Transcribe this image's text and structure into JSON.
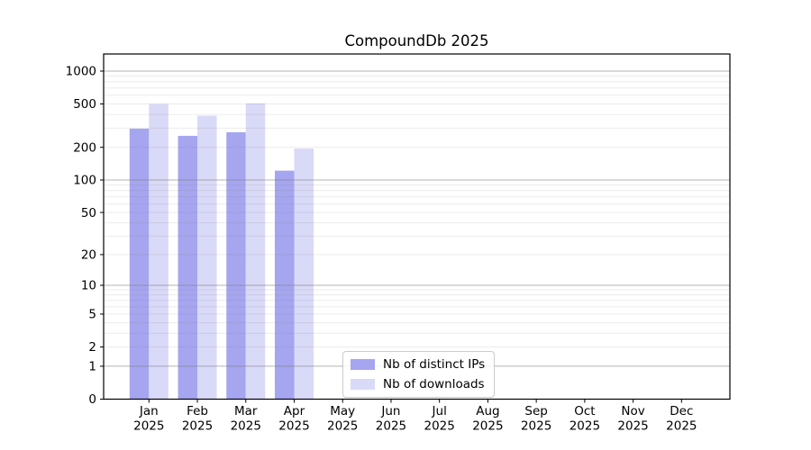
{
  "chart_data": {
    "type": "bar",
    "title": "CompoundDb 2025",
    "year": "2025",
    "categories": [
      "Jan",
      "Feb",
      "Mar",
      "Apr",
      "May",
      "Jun",
      "Jul",
      "Aug",
      "Sep",
      "Oct",
      "Nov",
      "Dec"
    ],
    "series": [
      {
        "name": "Nb of distinct IPs",
        "color": "#a5a5f0",
        "values": [
          297,
          255,
          275,
          122
        ]
      },
      {
        "name": "Nb of downloads",
        "color": "#d9d9f8",
        "values": [
          500,
          390,
          507,
          195
        ]
      }
    ],
    "y_ticks": [
      0,
      1,
      2,
      5,
      10,
      20,
      50,
      100,
      200,
      500,
      1000
    ],
    "yscale": "log10(1+x)",
    "ylim": [
      0,
      1430
    ],
    "grid": "horizontal",
    "legend_position": "inside-bottom-center"
  }
}
